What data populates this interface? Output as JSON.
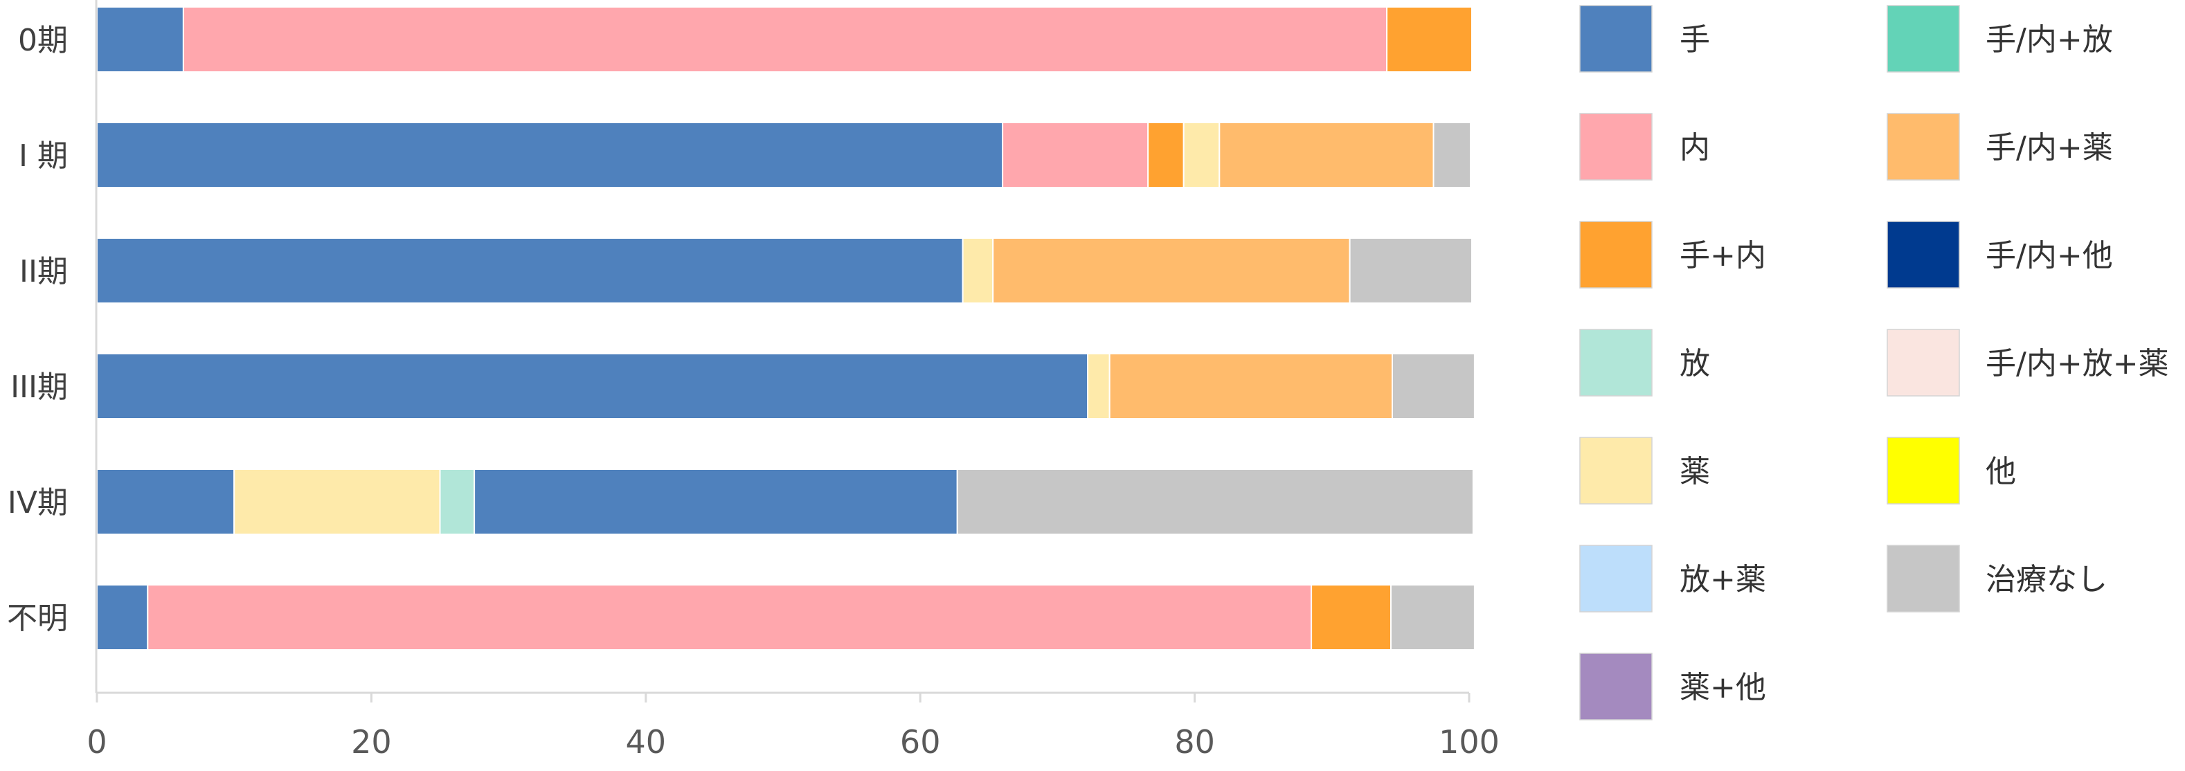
{
  "chart_data": {
    "type": "bar",
    "orientation": "horizontal",
    "stacked": true,
    "xlim": [
      0,
      100
    ],
    "xticks": [
      0,
      20,
      40,
      60,
      80,
      100
    ],
    "grid": false,
    "legend_position": "right",
    "categories": [
      "0期",
      "I 期",
      "II期",
      "III期",
      "IV期",
      "不明"
    ],
    "segments": [
      [
        {
          "name": "手",
          "value": 6.3
        },
        {
          "name": "内",
          "value": 87.7
        },
        {
          "name": "手+内",
          "value": 6.2
        }
      ],
      [
        {
          "name": "手",
          "value": 66.0
        },
        {
          "name": "内",
          "value": 10.6
        },
        {
          "name": "手+内",
          "value": 2.6
        },
        {
          "name": "薬",
          "value": 2.6
        },
        {
          "name": "手/内+薬",
          "value": 15.6
        },
        {
          "name": "治療なし",
          "value": 2.7
        }
      ],
      [
        {
          "name": "手",
          "value": 63.1
        },
        {
          "name": "薬",
          "value": 2.2
        },
        {
          "name": "手/内+薬",
          "value": 26.0
        },
        {
          "name": "治療なし",
          "value": 8.9
        }
      ],
      [
        {
          "name": "手",
          "value": 72.2
        },
        {
          "name": "薬",
          "value": 1.6
        },
        {
          "name": "手/内+薬",
          "value": 20.6
        },
        {
          "name": "治療なし",
          "value": 6.0
        }
      ],
      [
        {
          "name": "手",
          "value": 10.0
        },
        {
          "name": "薬",
          "value": 15.0
        },
        {
          "name": "放",
          "value": 2.5
        },
        {
          "name": "手",
          "value": 35.2
        },
        {
          "name": "治療なし",
          "value": 37.6
        }
      ],
      [
        {
          "name": "手",
          "value": 3.7
        },
        {
          "name": "内",
          "value": 84.8
        },
        {
          "name": "手+内",
          "value": 5.8
        },
        {
          "name": "治療なし",
          "value": 6.1
        }
      ]
    ],
    "legend": [
      {
        "name": "手",
        "color": "#4F81BD"
      },
      {
        "name": "内",
        "color": "#FFA7AD"
      },
      {
        "name": "手+内",
        "color": "#FFA230"
      },
      {
        "name": "放",
        "color": "#B1E6D8"
      },
      {
        "name": "薬",
        "color": "#FEEAAA"
      },
      {
        "name": "放+薬",
        "color": "#BDDEFB"
      },
      {
        "name": "薬+他",
        "color": "#A48ABF"
      },
      {
        "name": "手/内+放",
        "color": "#63D3B7"
      },
      {
        "name": "手/内+薬",
        "color": "#FFBB6C"
      },
      {
        "name": "手/内+他",
        "color": "#003A8F"
      },
      {
        "name": "手/内+放+薬",
        "color": "#FAE5E0"
      },
      {
        "name": "他",
        "color": "#FFFF00"
      },
      {
        "name": "治療なし",
        "color": "#C6C6C6"
      }
    ]
  }
}
